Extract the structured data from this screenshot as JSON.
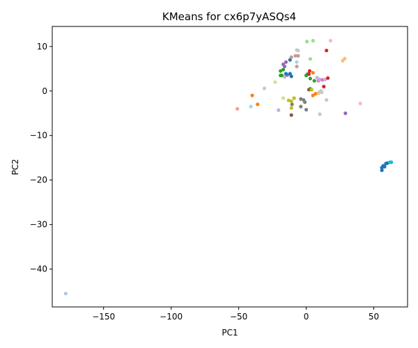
{
  "chart_data": {
    "type": "scatter",
    "title": "KMeans for cx6p7yASQs4",
    "xlabel": "PC1",
    "ylabel": "PC2",
    "xlim": [
      -188,
      75
    ],
    "ylim": [
      -48.5,
      14.5
    ],
    "xticks": [
      -150,
      -100,
      -50,
      0,
      50
    ],
    "yticks": [
      -40,
      -30,
      -20,
      -10,
      0,
      10
    ],
    "grid": false,
    "legend": "none",
    "points": [
      {
        "x": -178,
        "y": -45.5,
        "color": "#aec7e8"
      },
      {
        "x": -51,
        "y": -4,
        "color": "#ff9896"
      },
      {
        "x": -41,
        "y": -3.5,
        "color": "#9edae5"
      },
      {
        "x": -40,
        "y": -1,
        "color": "#ff7f0e"
      },
      {
        "x": -36,
        "y": -3,
        "color": "#ff7f0e"
      },
      {
        "x": -31,
        "y": 0.6,
        "color": "#c7c7c7"
      },
      {
        "x": -23,
        "y": 2,
        "color": "#dbdb8d"
      },
      {
        "x": -20.5,
        "y": -4.3,
        "color": "#c5b0d5"
      },
      {
        "x": -17,
        "y": -1.6,
        "color": "#dbdb8d"
      },
      {
        "x": -19,
        "y": 4.5,
        "color": "#2ca02c"
      },
      {
        "x": -18,
        "y": 3.5,
        "color": "#2ca02c"
      },
      {
        "x": -19,
        "y": 3.5,
        "color": "#2ca02c"
      },
      {
        "x": -17,
        "y": 4.8,
        "color": "#2ca02c"
      },
      {
        "x": -16,
        "y": 5.5,
        "color": "#9467bd"
      },
      {
        "x": -17,
        "y": 6.0,
        "color": "#9467bd"
      },
      {
        "x": -15,
        "y": 6.5,
        "color": "#9467bd"
      },
      {
        "x": -16,
        "y": 3.2,
        "color": "#c5b0d5"
      },
      {
        "x": -14,
        "y": 3.6,
        "color": "#9467bd"
      },
      {
        "x": -15,
        "y": 3.9,
        "color": "#1f77b4"
      },
      {
        "x": -12,
        "y": 3.9,
        "color": "#1f77b4"
      },
      {
        "x": -11,
        "y": 3.3,
        "color": "#1f77b4"
      },
      {
        "x": -12,
        "y": 7,
        "color": "#1f77b4"
      },
      {
        "x": -11,
        "y": 7.6,
        "color": "#c49c94"
      },
      {
        "x": -8,
        "y": 7.9,
        "color": "#c49c94"
      },
      {
        "x": -6,
        "y": 7.9,
        "color": "#c49c94"
      },
      {
        "x": -7,
        "y": 9.2,
        "color": "#c7c7c7"
      },
      {
        "x": -6,
        "y": 9.1,
        "color": "#c7c7c7"
      },
      {
        "x": -7,
        "y": 6.5,
        "color": "#9edae5"
      },
      {
        "x": -7,
        "y": 5.5,
        "color": "#c49c94"
      },
      {
        "x": 0.5,
        "y": 11.1,
        "color": "#98df8a"
      },
      {
        "x": 5,
        "y": 11.3,
        "color": "#98df8a"
      },
      {
        "x": 18,
        "y": 11.3,
        "color": "#f7b6d2"
      },
      {
        "x": 15,
        "y": 9.1,
        "color": "#d62728"
      },
      {
        "x": 3,
        "y": 7.2,
        "color": "#98df8a"
      },
      {
        "x": 27,
        "y": 6.8,
        "color": "#ffbb78"
      },
      {
        "x": 28.5,
        "y": 7.3,
        "color": "#ffbb78"
      },
      {
        "x": -13,
        "y": -2.1,
        "color": "#bcbd22"
      },
      {
        "x": -11,
        "y": -2.3,
        "color": "#bcbd22"
      },
      {
        "x": -9,
        "y": -1.6,
        "color": "#bcbd22"
      },
      {
        "x": -11,
        "y": -3.8,
        "color": "#bcbd22"
      },
      {
        "x": -10.5,
        "y": -3,
        "color": "#7f7f7f"
      },
      {
        "x": -11,
        "y": -5.4,
        "color": "#8c564b"
      },
      {
        "x": -4,
        "y": -3.5,
        "color": "#7f7f7f"
      },
      {
        "x": -4,
        "y": -1.8,
        "color": "#7f7f7f"
      },
      {
        "x": -2,
        "y": -2.0,
        "color": "#7f7f7f"
      },
      {
        "x": -1,
        "y": -2.5,
        "color": "#7f7f7f"
      },
      {
        "x": 0,
        "y": -4.2,
        "color": "#7f7f7f"
      },
      {
        "x": 1,
        "y": 3.8,
        "color": "#2ca02c"
      },
      {
        "x": 2,
        "y": 3.8,
        "color": "#d62728"
      },
      {
        "x": 2.5,
        "y": 4.5,
        "color": "#d62728"
      },
      {
        "x": 0,
        "y": 3.5,
        "color": "#2ca02c"
      },
      {
        "x": 3,
        "y": 2.8,
        "color": "#2ca02c"
      },
      {
        "x": 5,
        "y": 4.1,
        "color": "#ff7f0e"
      },
      {
        "x": 6,
        "y": 2.3,
        "color": "#2ca02c"
      },
      {
        "x": 8,
        "y": 3,
        "color": "#c5b0d5"
      },
      {
        "x": 9,
        "y": 2.3,
        "color": "#e377c2"
      },
      {
        "x": 10,
        "y": 2.6,
        "color": "#c5b0d5"
      },
      {
        "x": 12,
        "y": 2.5,
        "color": "#e377c2"
      },
      {
        "x": 14,
        "y": 2.6,
        "color": "#c5b0d5"
      },
      {
        "x": 16,
        "y": 2.9,
        "color": "#d62728"
      },
      {
        "x": 13,
        "y": 1,
        "color": "#d62728"
      },
      {
        "x": 2,
        "y": 0.3,
        "color": "#8c564b"
      },
      {
        "x": 3,
        "y": 0.5,
        "color": "#2ca02c"
      },
      {
        "x": 4,
        "y": 0.3,
        "color": "#bcbd22"
      },
      {
        "x": 5,
        "y": -1,
        "color": "#ff7f0e"
      },
      {
        "x": 7,
        "y": -0.6,
        "color": "#ff7f0e"
      },
      {
        "x": 9,
        "y": -0.5,
        "color": "#ffbb78"
      },
      {
        "x": 10,
        "y": -0.2,
        "color": "#c7c7c7"
      },
      {
        "x": 11.5,
        "y": -0.3,
        "color": "#c7c7c7"
      },
      {
        "x": 11,
        "y": 0,
        "color": "#c7c7c7"
      },
      {
        "x": 15,
        "y": -2,
        "color": "#c7c7c7"
      },
      {
        "x": 10,
        "y": -5.2,
        "color": "#c7c7c7"
      },
      {
        "x": 29,
        "y": -5,
        "color": "#9467bd"
      },
      {
        "x": 40,
        "y": -2.8,
        "color": "#f7b6d2"
      },
      {
        "x": 56,
        "y": -17.8,
        "color": "#1f77b4"
      },
      {
        "x": 56,
        "y": -17.2,
        "color": "#1f77b4"
      },
      {
        "x": 57,
        "y": -16.8,
        "color": "#1f77b4"
      },
      {
        "x": 58,
        "y": -17.0,
        "color": "#1f77b4"
      },
      {
        "x": 59,
        "y": -16.3,
        "color": "#1f77b4"
      },
      {
        "x": 60,
        "y": -16.2,
        "color": "#1f77b4"
      },
      {
        "x": 62,
        "y": -16.0,
        "color": "#17becf"
      },
      {
        "x": 63,
        "y": -16.0,
        "color": "#17becf"
      }
    ]
  }
}
